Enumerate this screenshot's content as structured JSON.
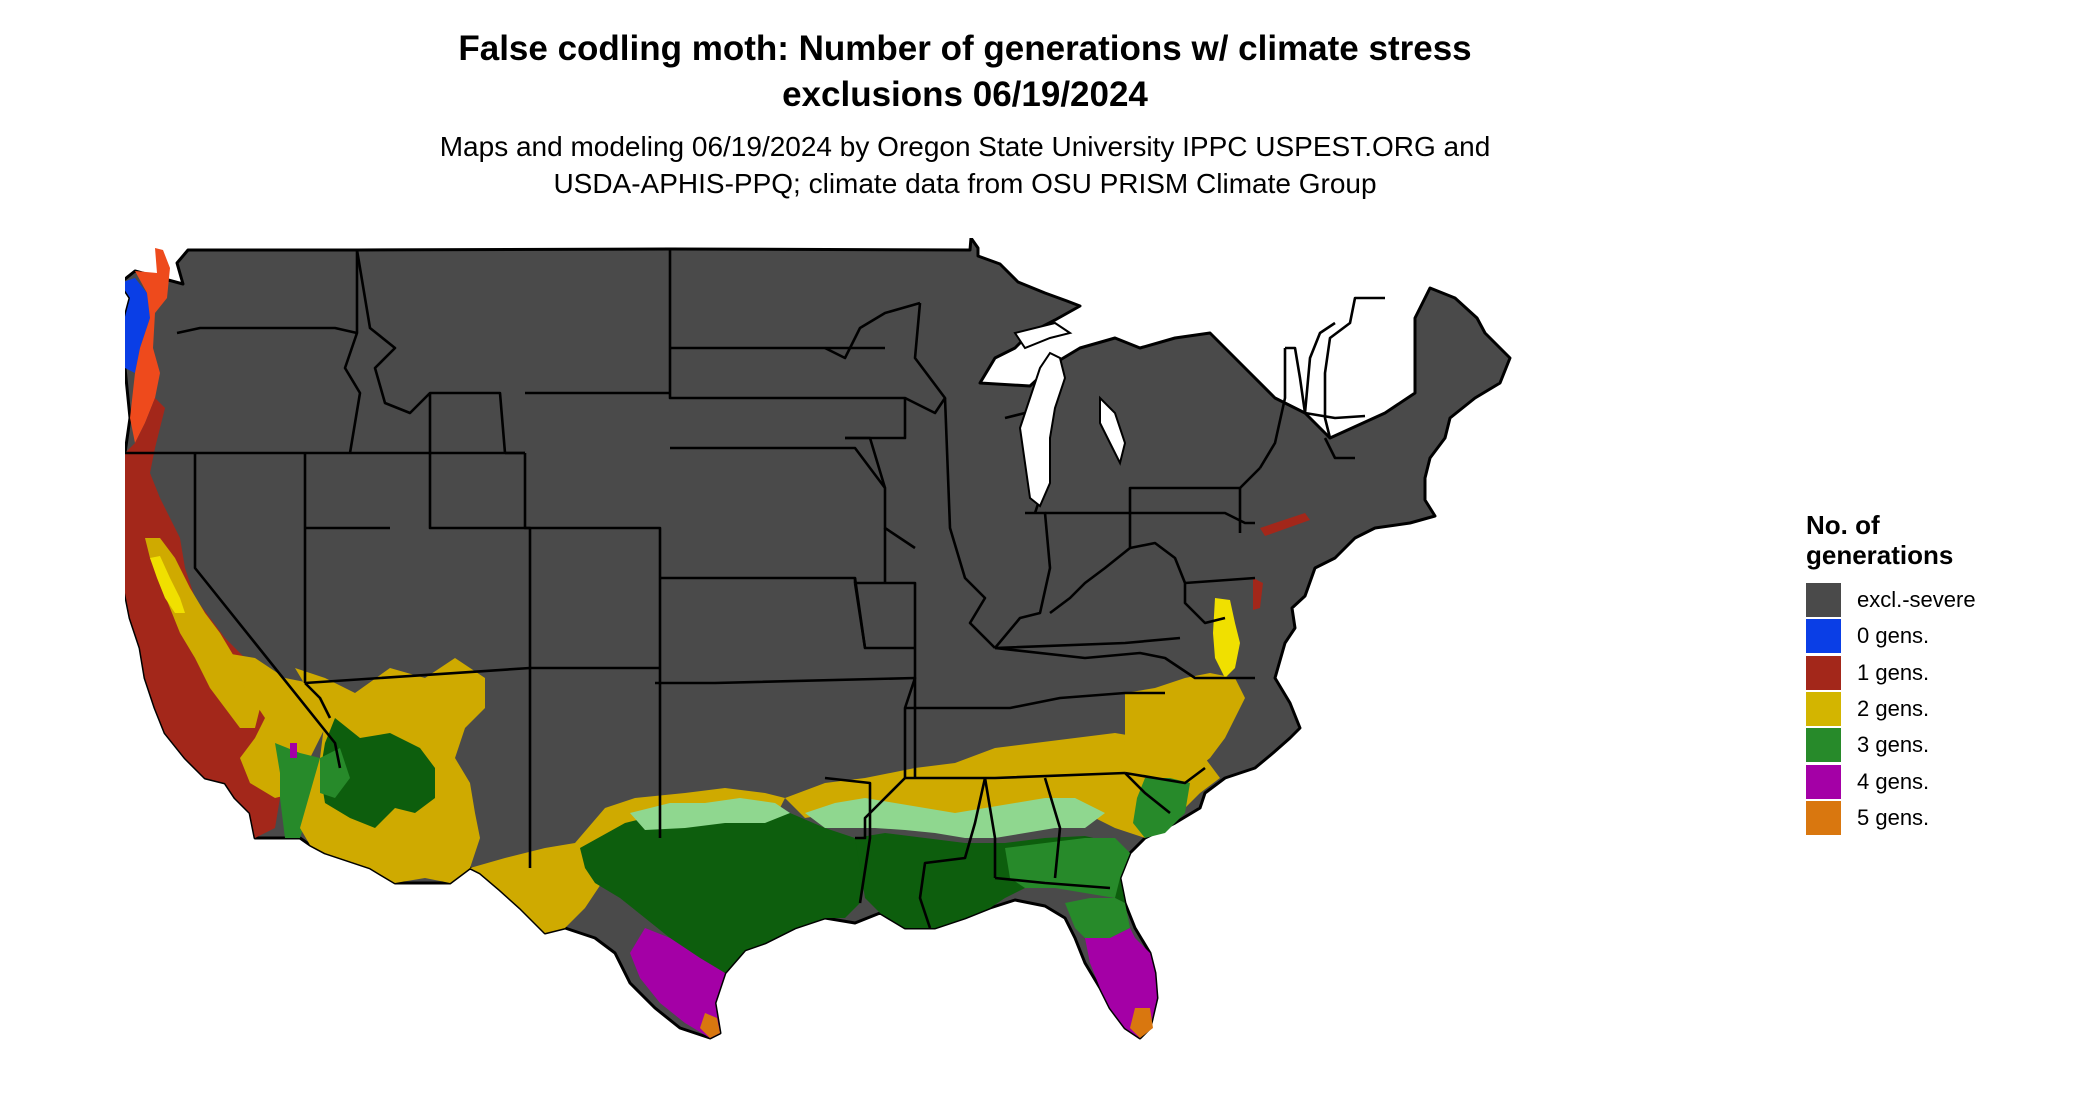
{
  "title_line1": "False codling moth: Number of generations w/ climate stress",
  "title_line2": "exclusions 06/19/2024",
  "subtitle_line1": "Maps and modeling 06/19/2024 by Oregon State University IPPC USPEST.ORG and",
  "subtitle_line2": "USDA-APHIS-PPQ; climate data from OSU PRISM Climate Group",
  "legend": {
    "title_line1": "No. of",
    "title_line2": "generations",
    "items": [
      {
        "label": "excl.-severe",
        "color": "#4a4a4a"
      },
      {
        "label": "0 gens.",
        "color": "#0a3ee6"
      },
      {
        "label": "1 gens.",
        "color": "#a3271a"
      },
      {
        "label": "2 gens.",
        "color": "#d3b500"
      },
      {
        "label": "3 gens.",
        "color": "#278a2a"
      },
      {
        "label": "4 gens.",
        "color": "#a400a6"
      },
      {
        "label": "5 gens.",
        "color": "#d9770f"
      }
    ]
  },
  "colors": {
    "excluded": "#4a4a4a",
    "zero": "#0a3ee6",
    "one": "#a3271a",
    "one_orange": "#ee4a1c",
    "two": "#cfaa00",
    "two_yellow": "#f0e000",
    "three_dark": "#0d5e0d",
    "three": "#278a2a",
    "three_light": "#8fd78f",
    "four": "#a400a6",
    "five": "#d9770f",
    "border": "#000000"
  }
}
